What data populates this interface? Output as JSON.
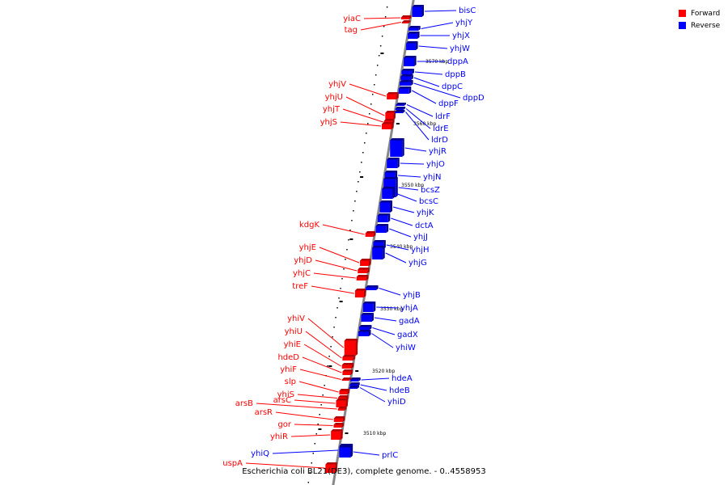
{
  "caption": "Escherichia coli BL21(DE3), complete genome. - 0..4558953",
  "legend": [
    {
      "label": "Forward",
      "color": "#ff0000"
    },
    {
      "label": "Reverse",
      "color": "#0000ff"
    }
  ],
  "colors": {
    "forward": "#ff0000",
    "reverse": "#0000ff",
    "forward_dark": "#b00000",
    "reverse_dark": "#00008b",
    "backbone": "#888888"
  },
  "ticks": [
    "3570 kbp",
    "3560 kbp",
    "3550 kbp",
    "3540 kbp",
    "3530 kbp",
    "3520 kbp",
    "3510 kbp"
  ],
  "forward_genes": [
    "yiaC",
    "tag",
    "yhjV",
    "yhjU",
    "yhjT",
    "yhjS",
    "kdgK",
    "yhjE",
    "yhjD",
    "yhjC",
    "treF",
    "yhiV",
    "yhiU",
    "yhiE",
    "hdeD",
    "yhiF",
    "slp",
    "yhiS",
    "arsC",
    "arsB",
    "arsR",
    "gor",
    "yhiR",
    "uspA"
  ],
  "reverse_genes": [
    "bisC",
    "yhjY",
    "yhjX",
    "yhjW",
    "dppA",
    "dppB",
    "dppC",
    "dppD",
    "dppF",
    "ldrF",
    "ldrE",
    "ldrD",
    "yhjR",
    "yhjO",
    "yhjN",
    "bcsZ",
    "bcsC",
    "yhjK",
    "dctA",
    "yhjJ",
    "yhjH",
    "yhjG",
    "yhjB",
    "yhjA",
    "gadA",
    "gadX",
    "yhiW",
    "hdeA",
    "hdeB",
    "yhiD",
    "yhiQ",
    "prlC"
  ]
}
